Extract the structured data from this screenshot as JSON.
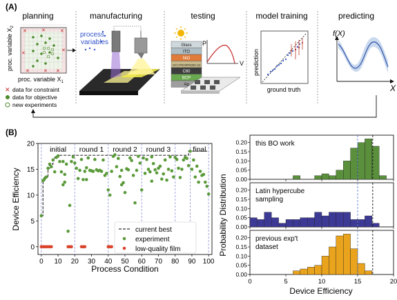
{
  "panel_a": {
    "label": "(A)",
    "steps": [
      "planning",
      "manufacturing",
      "testing",
      "model training",
      "predicting"
    ],
    "planning": {
      "x_axis": "proc. variable X",
      "x_sub": "1",
      "y_axis": "proc. variable X",
      "y_sub": "2",
      "legend": [
        "data for constraint",
        "data for objective",
        "new experiments"
      ]
    },
    "manufacturing": {
      "label_line1": "process",
      "label_line2": "variables"
    },
    "testing": {
      "stack_layers": [
        "Glass",
        "ITO",
        "NiO",
        "Cs0.17FA0.83Pb(IxBr1-x)3",
        "C60",
        "BCP",
        "Ag"
      ],
      "stack_colors": [
        "#cfd8dc",
        "#b0bec5",
        "#e07b39",
        "#c7b98b",
        "#3c3c3c",
        "#6aa84f",
        "#9e9e9e"
      ],
      "iv_y": "P",
      "iv_x": "V"
    },
    "model_training": {
      "ylabel": "prediction",
      "xlabel": "ground truth"
    },
    "predicting": {
      "ylabel": "f(X)",
      "xlabel": "X"
    }
  },
  "panel_b": {
    "label": "(B)",
    "chart_data": [
      {
        "type": "scatter",
        "xlabel": "Process Condition",
        "ylabel": "Device Efficiency",
        "xlim": [
          -2,
          102
        ],
        "ylim": [
          -1.5,
          20
        ],
        "xticks": [
          0,
          10,
          20,
          30,
          40,
          50,
          60,
          70,
          80,
          90,
          100
        ],
        "yticks": [
          0,
          5,
          10,
          15,
          20
        ],
        "round_boundaries": [
          0,
          20,
          40,
          60,
          80,
          89,
          100
        ],
        "round_labels": [
          {
            "text": "initial",
            "x": 10
          },
          {
            "text": "round 1",
            "x": 30
          },
          {
            "text": "round 2",
            "x": 50
          },
          {
            "text": "round 3",
            "x": 70
          },
          {
            "text": "final",
            "x": 94.5
          }
        ],
        "current_best": {
          "name": "current best",
          "x": [
            0,
            1,
            1,
            2,
            2,
            4,
            4,
            5,
            5,
            7,
            7,
            8,
            8,
            10,
            10,
            88,
            88,
            100
          ],
          "y": [
            6,
            6,
            12.8,
            12.8,
            13.5,
            13.5,
            15.2,
            15.2,
            16,
            16,
            16.8,
            16.8,
            17.3,
            17.3,
            17.7,
            17.7,
            18.5,
            18.5
          ]
        },
        "experiment": {
          "name": "experiment",
          "color": "#5a9a3a",
          "x": [
            0,
            1,
            2,
            3,
            4,
            5,
            6,
            7,
            8,
            9,
            10,
            11,
            12,
            13,
            14,
            15,
            16,
            17,
            18,
            19,
            20,
            21,
            22,
            23,
            24,
            25,
            26,
            27,
            28,
            29,
            30,
            31,
            32,
            33,
            34,
            35,
            36,
            37,
            38,
            39,
            40,
            41,
            42,
            43,
            44,
            45,
            46,
            47,
            48,
            49,
            50,
            51,
            52,
            53,
            54,
            55,
            56,
            57,
            58,
            59,
            60,
            61,
            62,
            63,
            64,
            65,
            66,
            67,
            68,
            69,
            70,
            71,
            72,
            73,
            74,
            75,
            76,
            77,
            78,
            79,
            80,
            81,
            82,
            83,
            84,
            85,
            86,
            87,
            88,
            89,
            90,
            91,
            92,
            93,
            94,
            95,
            96,
            97,
            98,
            99,
            100,
            13,
            14,
            48,
            27,
            66
          ],
          "y": [
            6,
            12.8,
            13.2,
            13.5,
            15.2,
            16,
            15.5,
            16.8,
            14.5,
            17.3,
            17.6,
            16.5,
            14.5,
            12,
            14,
            16,
            3,
            8,
            16.5,
            17.4,
            16.2,
            15.2,
            13.2,
            14.8,
            16.9,
            13,
            14.6,
            15.3,
            17.2,
            14.8,
            14.7,
            14.6,
            16.9,
            14.9,
            14.7,
            14.8,
            14.6,
            16.8,
            13.8,
            14.2,
            11,
            10,
            14.6,
            17.5,
            17.8,
            15.5,
            17.1,
            13.6,
            14.8,
            12.4,
            10.5,
            15.1,
            14.9,
            17.2,
            16.7,
            13.8,
            8.5,
            14.8,
            17.5,
            16.2,
            11,
            17.2,
            14.2,
            16.9,
            15,
            14.5,
            17.4,
            16.1,
            14.9,
            14.3,
            15.2,
            15.6,
            13.1,
            14.1,
            16.8,
            12.9,
            15,
            17.4,
            14.7,
            13.5,
            17.3,
            16.9,
            15.2,
            13.4,
            15,
            16.8,
            17.3,
            17.1,
            15.7,
            18.5,
            15,
            16.8,
            13.5,
            15.6,
            12.5,
            14.6,
            13.8,
            14,
            12.5,
            11.7,
            10.2,
            16.5,
            12.5,
            12,
            13,
            12.7
          ],
          "marker_size": 2.3
        },
        "low_quality": {
          "name": "low-quality film",
          "color": "#d9432b",
          "x": [
            0,
            1,
            2,
            3,
            4,
            5,
            6,
            16,
            17,
            18,
            24,
            25,
            26,
            40,
            41,
            42,
            55,
            56,
            57,
            58,
            59,
            73,
            74,
            75,
            80,
            81,
            82,
            89,
            90,
            91
          ],
          "y": [
            0,
            0,
            0,
            0,
            0,
            0,
            0,
            0,
            0,
            0,
            0,
            0,
            0,
            0,
            0,
            0,
            0,
            0,
            0,
            0,
            0,
            0,
            0,
            0,
            0,
            0,
            0,
            0,
            0,
            0
          ],
          "marker_size": 2.3
        },
        "legend": [
          "current best",
          "experiment",
          "low-quality film"
        ]
      },
      {
        "type": "bar",
        "group": "histograms",
        "shared_ylabel": "Probability Distribution",
        "shared_xlabel": "Device Efficiency",
        "xlim": [
          0,
          20
        ],
        "xticks": [
          0,
          5,
          10,
          15,
          20
        ],
        "bin_width": 1,
        "vlines": [
          15,
          17.1
        ],
        "panels": [
          {
            "annotation": [
              "this BO work"
            ],
            "color": "#5a8f3c",
            "ylim": [
              0,
              0.24
            ],
            "yticks": [
              "0.00",
              "0.05",
              "0.10",
              "0.15",
              "0.20"
            ],
            "bins_left": [
              6,
              7,
              8,
              9,
              10,
              11,
              12,
              13,
              14,
              15,
              16,
              17,
              18
            ],
            "values": [
              0.02,
              0.0,
              0.0,
              0.02,
              0.03,
              0.02,
              0.05,
              0.1,
              0.17,
              0.2,
              0.22,
              0.18,
              0.02
            ]
          },
          {
            "annotation": [
              "Latin hypercube",
              "sampling"
            ],
            "color": "#3d3a96",
            "ylim": [
              0,
              0.24
            ],
            "yticks": [
              "0.00",
              "0.05",
              "0.10",
              "0.15",
              "0.20"
            ],
            "bins_left": [
              0,
              1,
              2,
              3,
              4,
              5,
              6,
              7,
              8,
              9,
              10,
              11,
              12,
              13,
              14,
              15,
              16,
              17
            ],
            "values": [
              0.05,
              0.04,
              0.08,
              0.05,
              0.02,
              0.04,
              0.04,
              0.05,
              0.05,
              0.08,
              0.06,
              0.08,
              0.08,
              0.08,
              0.04,
              0.04,
              0.06,
              0.02
            ]
          },
          {
            "annotation": [
              "previous exp't",
              "dataset"
            ],
            "color": "#e9a31c",
            "ylim": [
              0,
              0.24
            ],
            "yticks": [
              "0.00",
              "0.05",
              "0.10",
              "0.15",
              "0.20"
            ],
            "bins_left": [
              6,
              7,
              8,
              9,
              10,
              11,
              12,
              13,
              14,
              15,
              16
            ],
            "values": [
              0.02,
              0.03,
              0.04,
              0.05,
              0.1,
              0.15,
              0.21,
              0.22,
              0.14,
              0.06,
              0.02
            ]
          }
        ]
      }
    ]
  }
}
